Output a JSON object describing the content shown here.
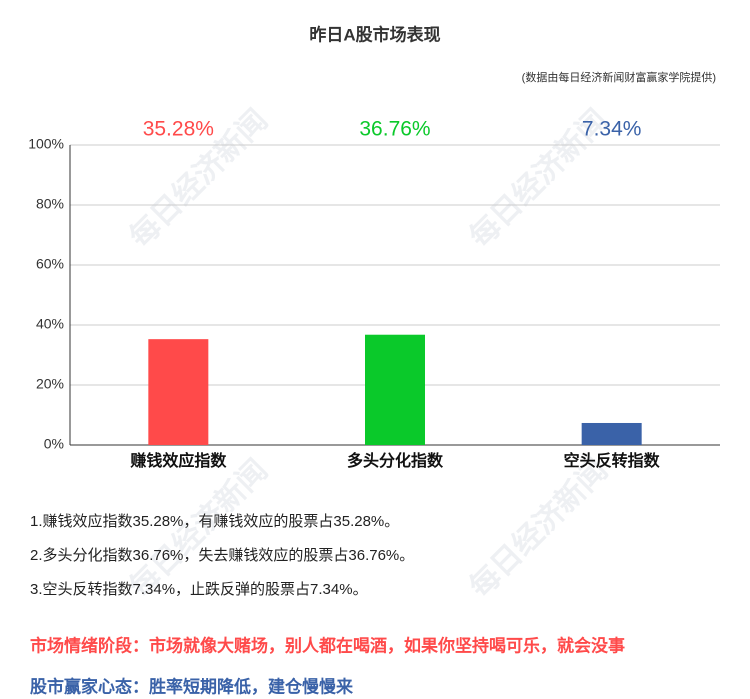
{
  "chart_data": {
    "type": "bar",
    "title": "昨日A股市场表现",
    "subtitle": "(数据由每日经济新闻财富赢家学院提供)",
    "categories": [
      "赚钱效应指数",
      "多头分化指数",
      "空头反转指数"
    ],
    "values": [
      35.28,
      36.76,
      7.34
    ],
    "value_labels": [
      "35.28%",
      "36.76%",
      "7.34%"
    ],
    "colors": [
      "#ff4a4a",
      "#0ac92a",
      "#3a62a8"
    ],
    "ylim": [
      0,
      100
    ],
    "yticks": [
      {
        "value": 0,
        "label": "0%"
      },
      {
        "value": 20,
        "label": "20%"
      },
      {
        "value": 40,
        "label": "40%"
      },
      {
        "value": 60,
        "label": "60%"
      },
      {
        "value": 80,
        "label": "80%"
      },
      {
        "value": 100,
        "label": "100%"
      }
    ],
    "grid": true
  },
  "watermark": "每日经济新闻",
  "notes": [
    "1.赚钱效应指数35.28%，有赚钱效应的股票占35.28%。",
    "2.多头分化指数36.76%，失去赚钱效应的股票占36.76%。",
    "3.空头反转指数7.34%，止跌反弹的股票占7.34%。"
  ],
  "highlights": [
    {
      "text": "市场情绪阶段：市场就像大赌场，别人都在喝酒，如果你坚持喝可乐，就会没事",
      "color": "#ff4a4a"
    },
    {
      "text": "股市赢家心态：胜率短期降低，建仓慢慢来",
      "color": "#3a62a8"
    }
  ]
}
